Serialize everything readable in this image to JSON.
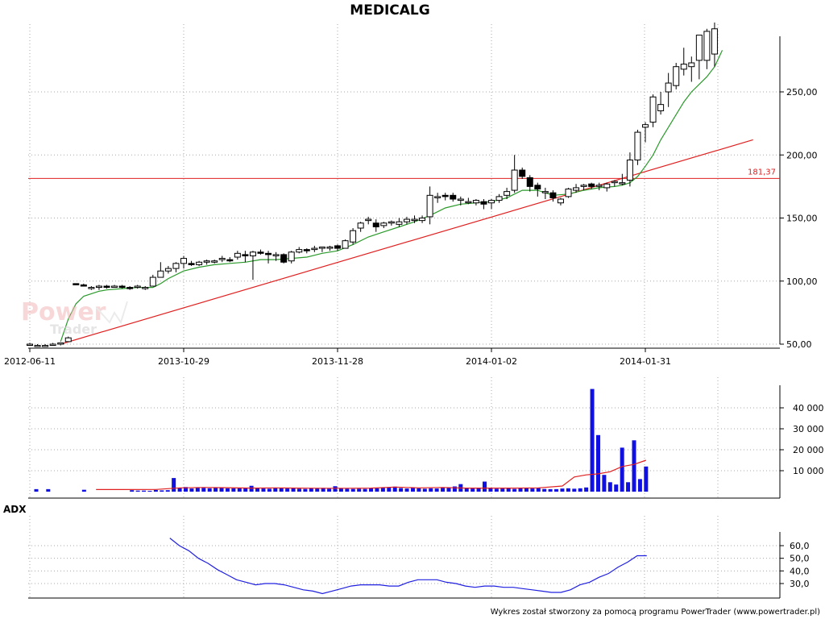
{
  "title": "MEDICALG",
  "adx_label": "ADX",
  "footer": "Wykres został stworzony za pomocą programu PowerTrader (www.powertrader.pl)",
  "watermark": {
    "line1": "Power",
    "line2": "Trader"
  },
  "colors": {
    "candle_up_fill": "#ffffff",
    "candle_down_fill": "#000000",
    "sma": "#2a9a2a",
    "trendline": "#e02020",
    "hline": "#e02020",
    "volume": "#1010e0",
    "volume_avg": "#e02020",
    "adx": "#2020e0",
    "watermark": "#f2b8b8"
  },
  "chart_data": [
    {
      "type": "candlestick",
      "title": "MEDICALG",
      "x_tick_labels": [
        "2012-06-11",
        "2013-10-29",
        "2013-11-28",
        "2014-01-02",
        "2014-01-31"
      ],
      "x_tick_index": [
        0,
        20,
        40,
        60,
        80
      ],
      "y_ticks": [
        "50,00",
        "100,00",
        "150,00",
        "200,00",
        "250,00"
      ],
      "y_tick_values": [
        50,
        100,
        150,
        200,
        250
      ],
      "ylim": [
        50,
        300
      ],
      "grid": true,
      "horizontal_line": {
        "value": 181.37,
        "label": "181,37"
      },
      "trendline": {
        "from": [
          4,
          50
        ],
        "to": [
          94,
          212
        ]
      },
      "candles": [
        [
          50,
          51,
          49,
          50
        ],
        [
          49,
          50,
          48,
          49
        ],
        [
          49,
          50,
          48,
          49
        ],
        [
          50,
          51,
          49,
          50
        ],
        [
          50,
          51,
          49,
          51
        ],
        [
          52,
          56,
          52,
          55
        ],
        [
          98,
          98,
          97,
          97
        ],
        [
          97,
          98,
          96,
          96
        ],
        [
          95,
          96,
          93,
          95
        ],
        [
          95,
          97,
          93,
          96
        ],
        [
          96,
          97,
          94,
          95
        ],
        [
          95,
          97,
          95,
          96
        ],
        [
          96,
          97,
          94,
          95
        ],
        [
          95,
          96,
          93,
          94
        ],
        [
          95,
          97,
          94,
          96
        ],
        [
          94,
          96,
          93,
          95
        ],
        [
          96,
          105,
          96,
          103
        ],
        [
          103,
          115,
          103,
          108
        ],
        [
          108,
          112,
          106,
          110
        ],
        [
          110,
          115,
          107,
          114
        ],
        [
          114,
          120,
          110,
          118
        ],
        [
          114,
          116,
          112,
          113
        ],
        [
          113,
          116,
          112,
          115
        ],
        [
          115,
          117,
          113,
          116
        ],
        [
          115,
          117,
          114,
          116
        ],
        [
          117,
          120,
          115,
          118
        ],
        [
          117,
          119,
          115,
          116
        ],
        [
          119,
          124,
          117,
          122
        ],
        [
          121,
          124,
          115,
          120
        ],
        [
          120,
          124,
          101,
          123
        ],
        [
          123,
          125,
          121,
          122
        ],
        [
          122,
          124,
          114,
          121
        ],
        [
          121,
          123,
          116,
          121
        ],
        [
          121,
          122,
          114,
          115
        ],
        [
          116,
          124,
          114,
          123
        ],
        [
          123,
          127,
          122,
          125
        ],
        [
          125,
          126,
          122,
          124
        ],
        [
          125,
          128,
          123,
          126
        ],
        [
          126,
          127,
          123,
          127
        ],
        [
          126,
          128,
          124,
          127
        ],
        [
          128,
          129,
          124,
          126
        ],
        [
          126,
          133,
          126,
          132
        ],
        [
          131,
          142,
          129,
          140
        ],
        [
          142,
          147,
          139,
          146
        ],
        [
          148,
          151,
          145,
          149
        ],
        [
          146,
          149,
          139,
          143
        ],
        [
          144,
          147,
          142,
          146
        ],
        [
          146,
          148,
          144,
          147
        ],
        [
          145,
          150,
          143,
          147
        ],
        [
          147,
          151,
          145,
          149
        ],
        [
          148,
          152,
          146,
          149
        ],
        [
          148,
          152,
          146,
          150
        ],
        [
          151,
          175,
          145,
          168
        ],
        [
          166,
          170,
          162,
          167
        ],
        [
          168,
          170,
          164,
          167
        ],
        [
          168,
          170,
          163,
          165
        ],
        [
          164,
          167,
          160,
          165
        ],
        [
          163,
          166,
          161,
          163
        ],
        [
          162,
          165,
          160,
          164
        ],
        [
          163,
          165,
          157,
          161
        ],
        [
          162,
          165,
          157,
          164
        ],
        [
          164,
          169,
          162,
          167
        ],
        [
          168,
          174,
          165,
          171
        ],
        [
          172,
          200,
          170,
          188
        ],
        [
          188,
          190,
          181,
          183
        ],
        [
          182,
          184,
          171,
          175
        ],
        [
          176,
          178,
          167,
          173
        ],
        [
          170,
          174,
          165,
          171
        ],
        [
          170,
          172,
          163,
          166
        ],
        [
          162,
          166,
          160,
          165
        ],
        [
          167,
          174,
          166,
          173
        ],
        [
          172,
          177,
          170,
          174
        ],
        [
          175,
          177,
          172,
          176
        ],
        [
          177,
          178,
          173,
          175
        ],
        [
          176,
          178,
          172,
          176
        ],
        [
          174,
          178,
          171,
          177
        ],
        [
          178,
          180,
          175,
          179
        ],
        [
          178,
          185,
          176,
          178
        ],
        [
          180,
          202,
          175,
          196
        ],
        [
          196,
          220,
          192,
          218
        ],
        [
          222,
          226,
          210,
          224
        ],
        [
          226,
          248,
          222,
          246
        ],
        [
          235,
          250,
          232,
          240
        ],
        [
          250,
          265,
          238,
          257
        ],
        [
          255,
          273,
          252,
          270
        ],
        [
          268,
          285,
          263,
          272
        ],
        [
          270,
          278,
          258,
          273
        ],
        [
          275,
          293,
          260,
          295
        ],
        [
          275,
          300,
          268,
          298
        ],
        [
          280,
          305,
          270,
          300
        ]
      ],
      "sma": [
        [
          4,
          52
        ],
        [
          5,
          70
        ],
        [
          6,
          82
        ],
        [
          7,
          88
        ],
        [
          8,
          90
        ],
        [
          9,
          92
        ],
        [
          10,
          93
        ],
        [
          12,
          94
        ],
        [
          14,
          95
        ],
        [
          16,
          95
        ],
        [
          17,
          98
        ],
        [
          18,
          102
        ],
        [
          20,
          108
        ],
        [
          22,
          111
        ],
        [
          24,
          113
        ],
        [
          26,
          114
        ],
        [
          28,
          115
        ],
        [
          30,
          117
        ],
        [
          32,
          117
        ],
        [
          34,
          118
        ],
        [
          36,
          119
        ],
        [
          38,
          122
        ],
        [
          40,
          124
        ],
        [
          42,
          129
        ],
        [
          44,
          135
        ],
        [
          46,
          139
        ],
        [
          48,
          143
        ],
        [
          50,
          147
        ],
        [
          52,
          152
        ],
        [
          54,
          158
        ],
        [
          56,
          161
        ],
        [
          58,
          162
        ],
        [
          60,
          163
        ],
        [
          62,
          166
        ],
        [
          64,
          172
        ],
        [
          66,
          172
        ],
        [
          68,
          168
        ],
        [
          70,
          169
        ],
        [
          72,
          172
        ],
        [
          74,
          174
        ],
        [
          76,
          175
        ],
        [
          77,
          176
        ],
        [
          78,
          178
        ],
        [
          79,
          183
        ],
        [
          80,
          191
        ],
        [
          81,
          200
        ],
        [
          82,
          212
        ],
        [
          83,
          222
        ],
        [
          84,
          232
        ],
        [
          85,
          242
        ],
        [
          86,
          250
        ],
        [
          87,
          256
        ],
        [
          88,
          262
        ],
        [
          89,
          270
        ],
        [
          90,
          283
        ]
      ]
    },
    {
      "type": "bar",
      "name": "volume",
      "y_ticks": [
        "10 000",
        "20 000",
        "30 000",
        "40 000"
      ],
      "y_tick_values": [
        10000,
        20000,
        30000,
        40000
      ],
      "ylim": [
        0,
        50000
      ],
      "values": [
        1200,
        0,
        1200,
        0,
        0,
        0,
        0,
        0,
        900,
        0,
        0,
        0,
        0,
        0,
        0,
        0,
        700,
        500,
        500,
        400,
        800,
        600,
        700,
        6500,
        1800,
        2200,
        1500,
        2000,
        1800,
        1600,
        1800,
        1800,
        1600,
        1600,
        1700,
        1600,
        2800,
        1800,
        1500,
        1400,
        1700,
        1600,
        1500,
        1600,
        1400,
        1300,
        1600,
        1500,
        1800,
        1400,
        2600,
        1700,
        1400,
        1300,
        1400,
        1300,
        1600,
        1600,
        1800,
        1900,
        2400,
        1700,
        1500,
        1900,
        1600,
        1400,
        1600,
        1500,
        1800,
        2000,
        2500,
        3600,
        1800,
        1500,
        1700,
        4800,
        1600,
        1400,
        1500,
        1600,
        1300,
        1600,
        1700,
        1500,
        1700,
        1300,
        1200,
        1200,
        1500,
        1600,
        1400,
        1600,
        2000,
        49000,
        27000,
        8000,
        4500,
        3400,
        21000,
        4500,
        24500,
        6000,
        12000
      ],
      "avg_values": [
        [
          10,
          1000
        ],
        [
          14,
          1000
        ],
        [
          20,
          1050
        ],
        [
          24,
          1800
        ],
        [
          28,
          2000
        ],
        [
          32,
          1900
        ],
        [
          36,
          1700
        ],
        [
          40,
          1800
        ],
        [
          44,
          1700
        ],
        [
          48,
          1600
        ],
        [
          52,
          1600
        ],
        [
          56,
          1700
        ],
        [
          60,
          2200
        ],
        [
          64,
          1800
        ],
        [
          68,
          2000
        ],
        [
          72,
          1700
        ],
        [
          76,
          1700
        ],
        [
          80,
          1700
        ],
        [
          84,
          1800
        ],
        [
          88,
          2700
        ],
        [
          90,
          7000
        ],
        [
          92,
          8000
        ],
        [
          94,
          8500
        ],
        [
          96,
          9500
        ],
        [
          98,
          12000
        ],
        [
          100,
          13000
        ],
        [
          102,
          15000
        ]
      ]
    },
    {
      "type": "line",
      "name": "ADX",
      "y_ticks": [
        "30,0",
        "40,0",
        "50,0",
        "60,0"
      ],
      "y_tick_values": [
        30,
        40,
        50,
        60
      ],
      "ylim": [
        20,
        70
      ],
      "values": [
        [
          28,
          66
        ],
        [
          30,
          60
        ],
        [
          32,
          56
        ],
        [
          34,
          50
        ],
        [
          36,
          46
        ],
        [
          38,
          41
        ],
        [
          40,
          37
        ],
        [
          42,
          33
        ],
        [
          44,
          31
        ],
        [
          46,
          29
        ],
        [
          48,
          30
        ],
        [
          50,
          30
        ],
        [
          52,
          29
        ],
        [
          54,
          27
        ],
        [
          56,
          25
        ],
        [
          58,
          24
        ],
        [
          60,
          22
        ],
        [
          62,
          24
        ],
        [
          64,
          26
        ],
        [
          66,
          28
        ],
        [
          68,
          29
        ],
        [
          70,
          29
        ],
        [
          72,
          29
        ],
        [
          74,
          28
        ],
        [
          76,
          28
        ],
        [
          78,
          31
        ],
        [
          80,
          33
        ],
        [
          82,
          33
        ],
        [
          84,
          33
        ],
        [
          86,
          31
        ],
        [
          88,
          30
        ],
        [
          90,
          28
        ],
        [
          92,
          27
        ],
        [
          94,
          28
        ],
        [
          96,
          28
        ],
        [
          98,
          27
        ],
        [
          100,
          27
        ],
        [
          102,
          26
        ],
        [
          104,
          25
        ],
        [
          106,
          24
        ],
        [
          108,
          23
        ],
        [
          110,
          23
        ],
        [
          112,
          25
        ],
        [
          114,
          29
        ],
        [
          116,
          31
        ],
        [
          118,
          35
        ],
        [
          120,
          38
        ],
        [
          122,
          43
        ],
        [
          124,
          47
        ],
        [
          126,
          52
        ],
        [
          128,
          52
        ]
      ]
    }
  ]
}
